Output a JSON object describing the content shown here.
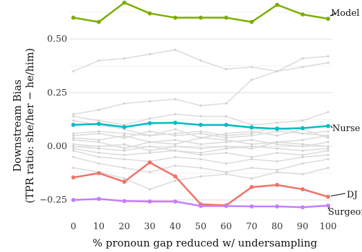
{
  "chart_data": {
    "type": "line",
    "xlabel": "% pronoun gap reduced w/ undersampling",
    "ylabel_line1": "Downstream Bias",
    "ylabel_line2": "(TPR ratio: she/her − he/him)",
    "x": [
      0,
      10,
      20,
      30,
      40,
      50,
      60,
      70,
      80,
      90,
      100
    ],
    "xlim": [
      0,
      100
    ],
    "ylim": [
      -0.3,
      0.65
    ],
    "yticks": [
      -0.25,
      0.0,
      0.25,
      0.5
    ],
    "ytick_labels": [
      "−0.25",
      "0.00",
      "0.25",
      "0.50"
    ],
    "grid": true,
    "series": [
      {
        "name": "Model",
        "color": "#7cae00",
        "values": [
          0.6,
          0.58,
          0.67,
          0.62,
          0.6,
          0.6,
          0.6,
          0.58,
          0.66,
          0.615,
          0.595
        ]
      },
      {
        "name": "Nurse",
        "color": "#00bcc4",
        "values": [
          0.1,
          0.105,
          0.09,
          0.108,
          0.11,
          0.1,
          0.1,
          0.088,
          0.082,
          0.085,
          0.095
        ]
      },
      {
        "name": "DJ",
        "color": "#f0736b",
        "values": [
          -0.145,
          -0.125,
          -0.165,
          -0.075,
          -0.14,
          -0.27,
          -0.275,
          -0.19,
          -0.18,
          -0.2,
          -0.235
        ]
      },
      {
        "name": "Surgeon",
        "color": "#c77cff",
        "values": [
          -0.25,
          -0.245,
          -0.255,
          -0.257,
          -0.257,
          -0.278,
          -0.278,
          -0.28,
          -0.28,
          -0.284,
          -0.276
        ]
      }
    ],
    "background_series": [
      [
        0.35,
        0.4,
        0.41,
        0.43,
        0.45,
        0.4,
        0.36,
        0.37,
        0.35,
        0.41,
        0.42
      ],
      [
        0.15,
        0.17,
        0.2,
        0.21,
        0.22,
        0.19,
        0.2,
        0.31,
        0.35,
        0.37,
        0.39
      ],
      [
        0.14,
        0.12,
        0.1,
        0.13,
        0.15,
        0.14,
        0.14,
        0.1,
        0.11,
        0.12,
        0.16
      ],
      [
        0.12,
        0.1,
        0.08,
        0.05,
        0.06,
        0.07,
        0.05,
        0.06,
        0.09,
        0.06,
        0.07
      ],
      [
        0.04,
        0.03,
        0.05,
        0.02,
        0.01,
        0.04,
        0.03,
        0.01,
        0.02,
        0.03,
        0.05
      ],
      [
        0.03,
        0.02,
        -0.01,
        0.02,
        0.03,
        0.01,
        0.02,
        0.03,
        0.01,
        0.0,
        0.02
      ],
      [
        0.01,
        0.0,
        0.01,
        -0.02,
        0.0,
        -0.01,
        0.0,
        -0.01,
        0.02,
        0.01,
        0.0
      ],
      [
        0.0,
        -0.01,
        -0.02,
        0.0,
        -0.02,
        -0.03,
        -0.01,
        0.0,
        -0.01,
        -0.02,
        -0.01
      ],
      [
        -0.01,
        -0.03,
        -0.04,
        -0.03,
        -0.02,
        -0.04,
        -0.03,
        -0.05,
        -0.03,
        -0.04,
        -0.02
      ],
      [
        -0.02,
        -0.05,
        -0.06,
        -0.07,
        -0.05,
        -0.06,
        -0.08,
        -0.06,
        -0.07,
        -0.05,
        -0.04
      ],
      [
        -0.05,
        -0.08,
        -0.1,
        -0.12,
        -0.09,
        -0.1,
        -0.12,
        -0.1,
        -0.11,
        -0.08,
        -0.06
      ],
      [
        -0.1,
        -0.12,
        -0.15,
        -0.2,
        -0.16,
        -0.14,
        -0.13,
        -0.15,
        -0.12,
        -0.13,
        -0.1
      ],
      [
        0.05,
        0.06,
        0.04,
        0.07,
        0.05,
        0.06,
        0.04,
        0.05,
        0.07,
        0.06,
        0.05
      ],
      [
        0.06,
        0.07,
        0.06,
        0.05,
        0.08,
        0.04,
        0.06,
        0.07,
        0.05,
        0.08,
        0.04
      ]
    ]
  }
}
